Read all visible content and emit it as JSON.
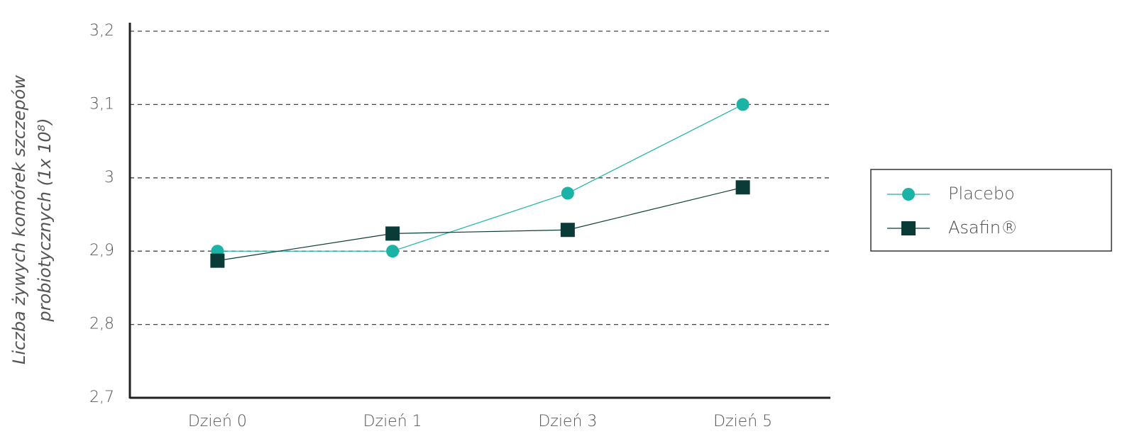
{
  "chart_data": {
    "type": "line",
    "y_label": [
      "Liczba żywych komórek szczepów",
      "probiotycznych (1x 10⁸)"
    ],
    "categories": [
      "Dzień 0",
      "Dzień 1",
      "Dzień 3",
      "Dzień 5"
    ],
    "series": [
      {
        "name": "Placebo",
        "color": "#1ab3a6",
        "marker": "circle",
        "values": [
          2.9,
          2.9,
          2.979,
          3.1
        ]
      },
      {
        "name": "Asafin®",
        "color": "#0b3b36",
        "marker": "square",
        "values": [
          2.887,
          2.924,
          2.929,
          2.987
        ]
      }
    ],
    "ylim": [
      2.7,
      3.2
    ],
    "yticks": [
      {
        "value": 2.7,
        "label": "2,7"
      },
      {
        "value": 2.8,
        "label": "2,8"
      },
      {
        "value": 2.9,
        "label": "2,9"
      },
      3,
      {
        "value": 3.1,
        "label": "3,1"
      },
      {
        "value": 3.2,
        "label": "3,2"
      }
    ],
    "grid": true,
    "legend": "right"
  }
}
